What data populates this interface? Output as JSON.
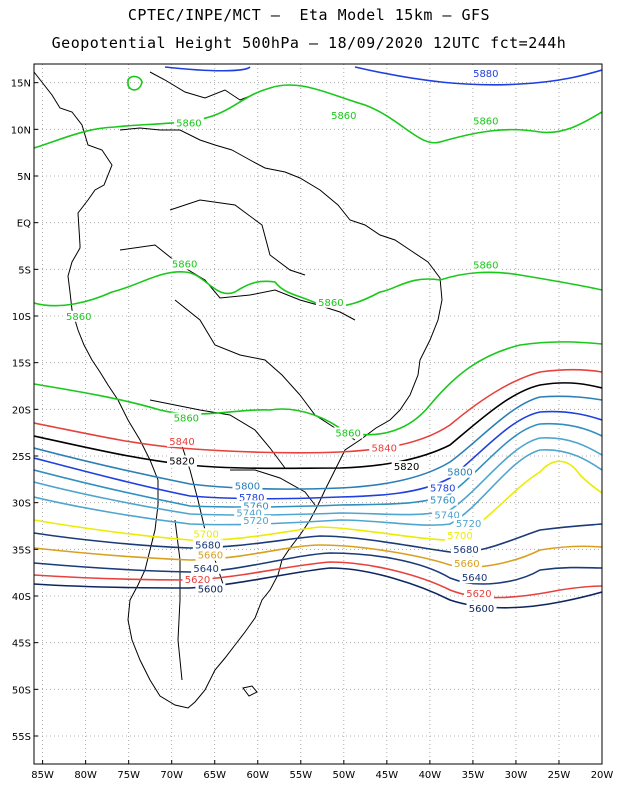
{
  "header": {
    "line1": "CPTEC/INPE/MCT –  Eta Model 15km – GFS",
    "line2": "Geopotential Height 500hPa – 18/09/2020 12UTC fct=244h"
  },
  "map": {
    "lat_ticks": [
      "15N",
      "10N",
      "5N",
      "EQ",
      "5S",
      "10S",
      "15S",
      "20S",
      "25S",
      "30S",
      "35S",
      "40S",
      "45S",
      "50S",
      "55S"
    ],
    "lon_ticks": [
      "85W",
      "80W",
      "75W",
      "70W",
      "65W",
      "60W",
      "55W",
      "50W",
      "45W",
      "40W",
      "35W",
      "30W",
      "25W",
      "20W"
    ],
    "lat_values": [
      15,
      10,
      5,
      0,
      -5,
      -10,
      -15,
      -20,
      -25,
      -30,
      -35,
      -40,
      -45,
      -50,
      -55
    ],
    "lon_values": [
      -85,
      -80,
      -75,
      -70,
      -65,
      -60,
      -55,
      -50,
      -45,
      -40,
      -35,
      -30,
      -25,
      -20
    ],
    "extent": {
      "lon": [
        -86,
        -20
      ],
      "lat": [
        -58,
        17
      ]
    },
    "gridlines": true,
    "contour_labels": [
      {
        "text": "5880",
        "color": "#1f3fe0",
        "lon": -33.5,
        "lat": 15.7
      },
      {
        "text": "5860",
        "color": "#19c819",
        "lon": -68,
        "lat": 10.4
      },
      {
        "text": "5860",
        "color": "#19c819",
        "lon": -50,
        "lat": 11.2
      },
      {
        "text": "5860",
        "color": "#19c819",
        "lon": -33.5,
        "lat": 10.6
      },
      {
        "text": "5860",
        "color": "#19c819",
        "lon": -68.5,
        "lat": -4.7
      },
      {
        "text": "5860",
        "color": "#19c819",
        "lon": -33.5,
        "lat": -4.8
      },
      {
        "text": "5860",
        "color": "#19c819",
        "lon": -51.5,
        "lat": -8.8
      },
      {
        "text": "5860",
        "color": "#19c819",
        "lon": -80.8,
        "lat": -10.3
      },
      {
        "text": "5860",
        "color": "#19c819",
        "lon": -68.3,
        "lat": -21.2
      },
      {
        "text": "5860",
        "color": "#19c819",
        "lon": -49.5,
        "lat": -22.8
      },
      {
        "text": "5840",
        "color": "#e8413c",
        "lon": -68.8,
        "lat": -23.7
      },
      {
        "text": "5840",
        "color": "#e8413c",
        "lon": -45.3,
        "lat": -24.4
      },
      {
        "text": "5820",
        "color": "#000000",
        "lon": -68.8,
        "lat": -25.8
      },
      {
        "text": "5820",
        "color": "#000000",
        "lon": -42.7,
        "lat": -26.4
      },
      {
        "text": "5800",
        "color": "#2a7fb6",
        "lon": -36.5,
        "lat": -27.0
      },
      {
        "text": "5800",
        "color": "#2a7fb6",
        "lon": -61.2,
        "lat": -28.5
      },
      {
        "text": "5780",
        "color": "#1f3fe0",
        "lon": -38.5,
        "lat": -28.7
      },
      {
        "text": "5780",
        "color": "#1f3fe0",
        "lon": -60.7,
        "lat": -29.7
      },
      {
        "text": "5760",
        "color": "#2f8fc0",
        "lon": -38.5,
        "lat": -30.0
      },
      {
        "text": "5760",
        "color": "#2f8fc0",
        "lon": -60.2,
        "lat": -30.6
      },
      {
        "text": "5740",
        "color": "#4ea5cf",
        "lon": -61.0,
        "lat": -31.4
      },
      {
        "text": "5740",
        "color": "#4ea5cf",
        "lon": -38.0,
        "lat": -31.6
      },
      {
        "text": "5720",
        "color": "#4ea5cf",
        "lon": -60.2,
        "lat": -32.2
      },
      {
        "text": "5720",
        "color": "#4ea5cf",
        "lon": -35.5,
        "lat": -32.5
      },
      {
        "text": "5700",
        "color": "#ecec00",
        "lon": -66.0,
        "lat": -33.6
      },
      {
        "text": "5700",
        "color": "#ecec00",
        "lon": -36.5,
        "lat": -33.8
      },
      {
        "text": "5680",
        "color": "#1a3a78",
        "lon": -65.8,
        "lat": -34.8
      },
      {
        "text": "5680",
        "color": "#1a3a78",
        "lon": -35.8,
        "lat": -35.3
      },
      {
        "text": "5660",
        "color": "#d9a020",
        "lon": -65.5,
        "lat": -35.9
      },
      {
        "text": "5660",
        "color": "#d9a020",
        "lon": -35.7,
        "lat": -36.8
      },
      {
        "text": "5640",
        "color": "#1a3a78",
        "lon": -66.0,
        "lat": -37.3
      },
      {
        "text": "5640",
        "color": "#1a3a78",
        "lon": -34.8,
        "lat": -38.3
      },
      {
        "text": "5620",
        "color": "#e8413c",
        "lon": -67.0,
        "lat": -38.5
      },
      {
        "text": "5620",
        "color": "#e8413c",
        "lon": -34.3,
        "lat": -40.0
      },
      {
        "text": "5600",
        "color": "#0e2660",
        "lon": -65.5,
        "lat": -39.5
      },
      {
        "text": "5600",
        "color": "#0e2660",
        "lon": -34.0,
        "lat": -41.6
      }
    ]
  }
}
